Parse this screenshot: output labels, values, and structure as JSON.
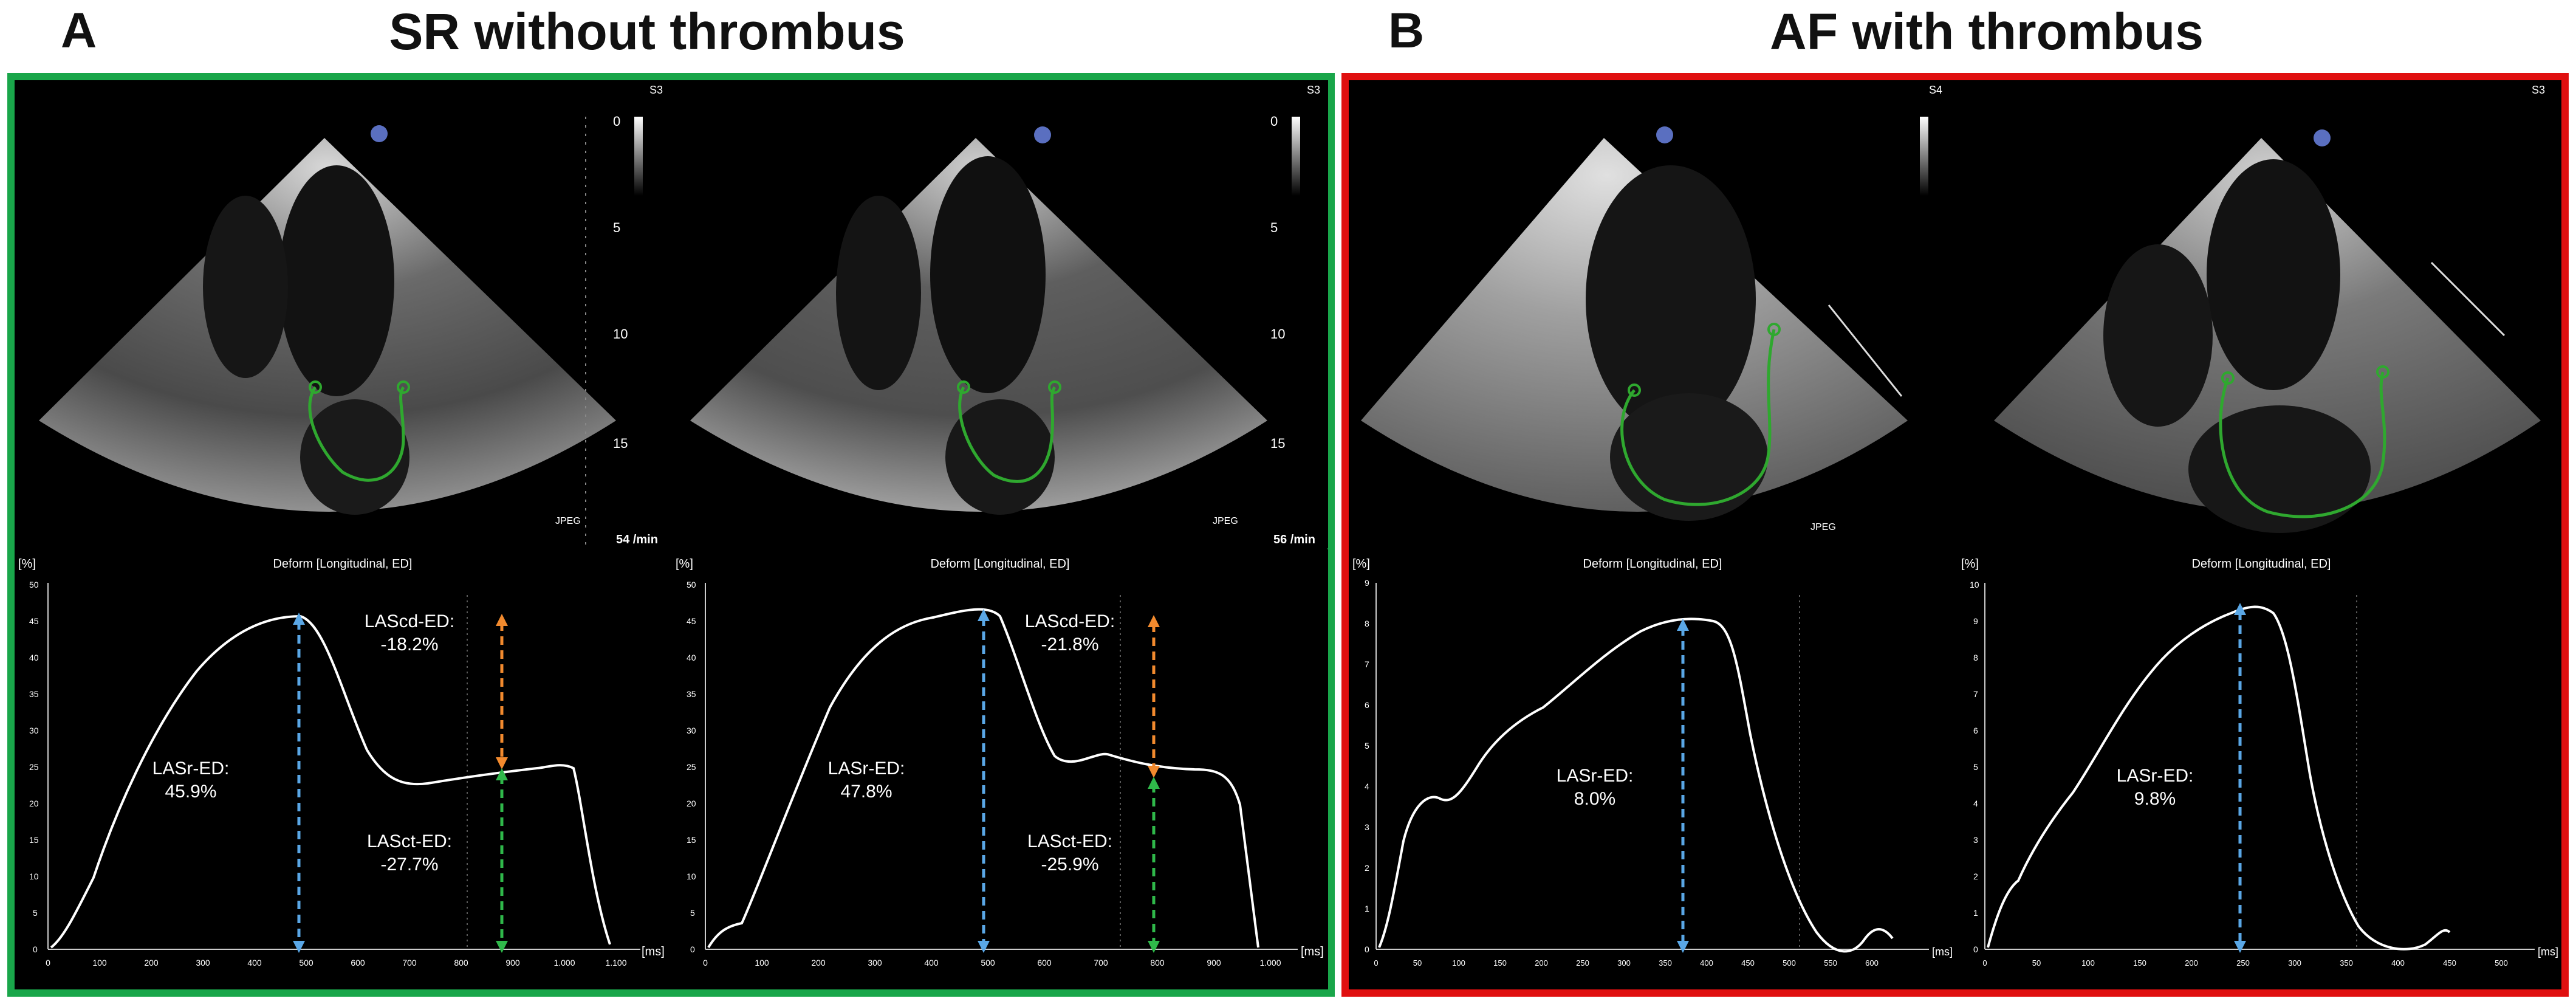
{
  "colors": {
    "green_border": "#19a64a",
    "red_border": "#e01010",
    "blue_arrow": "#5aa7e6",
    "orange_arrow": "#f28a2e",
    "green_arrow": "#2fb84a",
    "tracing": "#2fa82f"
  },
  "panel_a": {
    "letter": "A",
    "title": "SR without thrombus",
    "echo_left": {
      "probe": "S3",
      "scale": [
        "0",
        "5",
        "10",
        "15"
      ],
      "hr": "54 /min",
      "fmt": "JPEG"
    },
    "echo_right": {
      "probe": "S3",
      "scale": [
        "0",
        "5",
        "10",
        "15"
      ],
      "hr": "56 /min",
      "fmt": "JPEG"
    },
    "graph_left": {
      "unit": "[%]",
      "title": "Deform [Longitudinal, ED]",
      "xunit": "[ms]",
      "yticks": [
        "0",
        "5",
        "10",
        "15",
        "20",
        "25",
        "30",
        "35",
        "40",
        "45",
        "50"
      ],
      "xticks": [
        "0",
        "100",
        "200",
        "300",
        "400",
        "500",
        "600",
        "700",
        "800",
        "900",
        "1.000",
        "1.100"
      ],
      "lasr_label": "LASr-ED:",
      "lasr_value": "45.9%",
      "lascd_label": "LAScd-ED:",
      "lascd_value": "-18.2%",
      "lasct_label": "LASct-ED:",
      "lasct_value": "-27.7%"
    },
    "graph_right": {
      "unit": "[%]",
      "title": "Deform [Longitudinal, ED]",
      "xunit": "[ms]",
      "yticks": [
        "0",
        "5",
        "10",
        "15",
        "20",
        "25",
        "30",
        "35",
        "40",
        "45",
        "50"
      ],
      "xticks": [
        "0",
        "100",
        "200",
        "300",
        "400",
        "500",
        "600",
        "700",
        "800",
        "900",
        "1.000"
      ],
      "lasr_label": "LASr-ED:",
      "lasr_value": "47.8%",
      "lascd_label": "LAScd-ED:",
      "lascd_value": "-21.8%",
      "lasct_label": "LASct-ED:",
      "lasct_value": "-25.9%"
    }
  },
  "panel_b": {
    "letter": "B",
    "title": "AF with thrombus",
    "echo_left": {
      "probe": "S4",
      "fmt": "JPEG"
    },
    "echo_right": {
      "probe": "S3"
    },
    "graph_left": {
      "unit": "[%]",
      "title": "Deform [Longitudinal, ED]",
      "xunit": "[ms]",
      "yticks": [
        "0",
        "1",
        "2",
        "3",
        "4",
        "5",
        "6",
        "7",
        "8",
        "9"
      ],
      "xticks": [
        "0",
        "50",
        "100",
        "150",
        "200",
        "250",
        "300",
        "350",
        "400",
        "450",
        "500",
        "550",
        "600"
      ],
      "lasr_label": "LASr-ED:",
      "lasr_value": "8.0%"
    },
    "graph_right": {
      "unit": "[%]",
      "title": "Deform [Longitudinal, ED]",
      "xunit": "[ms]",
      "yticks": [
        "0",
        "1",
        "2",
        "3",
        "4",
        "5",
        "6",
        "7",
        "8",
        "9",
        "10"
      ],
      "xticks": [
        "0",
        "50",
        "100",
        "150",
        "200",
        "250",
        "300",
        "350",
        "400",
        "450",
        "500"
      ],
      "lasr_label": "LASr-ED:",
      "lasr_value": "9.8%"
    }
  }
}
